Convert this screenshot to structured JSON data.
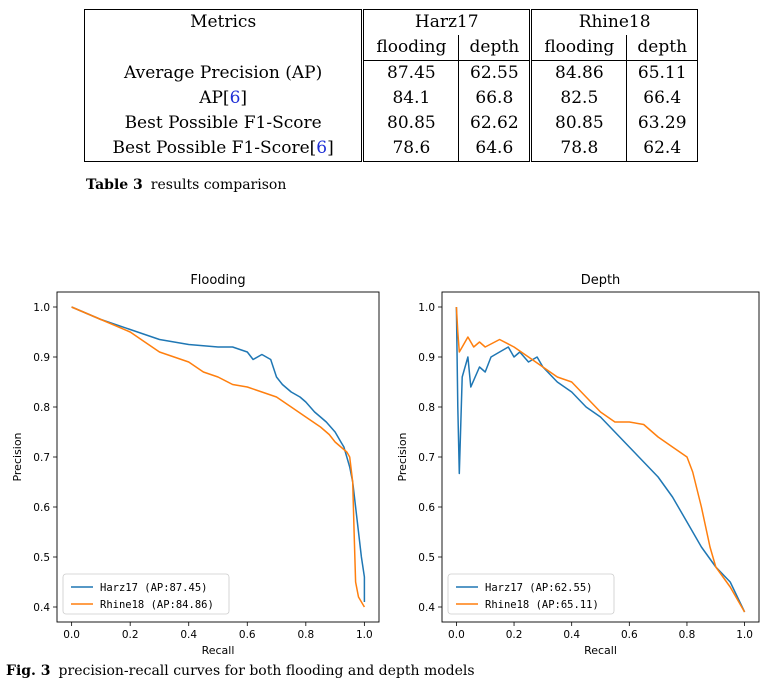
{
  "table": {
    "header": {
      "metrics": "Metrics",
      "group1": "Harz17",
      "group2": "Rhine18",
      "sub": [
        "flooding",
        "depth",
        "flooding",
        "depth"
      ]
    },
    "rows": [
      {
        "metric": "Average Precision (AP)",
        "cite": "",
        "values": [
          "87.45",
          "62.55",
          "84.86",
          "65.11"
        ],
        "bold": [
          true,
          false,
          true,
          false
        ]
      },
      {
        "metric": "AP[",
        "cite": "6",
        "values": [
          "84.1",
          "66.8",
          "82.5",
          "66.4"
        ],
        "bold": [
          false,
          true,
          false,
          true
        ]
      },
      {
        "metric": "Best Possible F1-Score",
        "cite": "",
        "values": [
          "80.85",
          "62.62",
          "80.85",
          "63.29"
        ],
        "bold": [
          true,
          false,
          true,
          true
        ]
      },
      {
        "metric": "Best Possible F1-Score[",
        "cite": "6",
        "values": [
          "78.6",
          "64.6",
          "78.8",
          "62.4"
        ],
        "bold": [
          false,
          true,
          false,
          false
        ]
      }
    ],
    "caption_label": "Table 3",
    "caption_text": "results comparison"
  },
  "figure": {
    "caption_label": "Fig. 3",
    "caption_text": "precision-recall curves for both flooding and depth models"
  },
  "colors": {
    "harz": "#1f77b4",
    "rhine": "#ff7f0e"
  },
  "chart_data": [
    {
      "type": "line",
      "title": "Flooding",
      "xlabel": "Recall",
      "ylabel": "Precision",
      "xlim": [
        -0.05,
        1.05
      ],
      "ylim": [
        0.37,
        1.03
      ],
      "xticks": [
        "0.0",
        "0.2",
        "0.4",
        "0.6",
        "0.8",
        "1.0"
      ],
      "yticks": [
        "0.4",
        "0.5",
        "0.6",
        "0.7",
        "0.8",
        "0.9",
        "1.0"
      ],
      "legend_position": "lower-left",
      "series": [
        {
          "name": "Harz17  (AP:87.45)",
          "color": "#1f77b4",
          "x": [
            0.0,
            0.1,
            0.2,
            0.3,
            0.4,
            0.5,
            0.55,
            0.6,
            0.62,
            0.65,
            0.68,
            0.7,
            0.72,
            0.75,
            0.78,
            0.8,
            0.83,
            0.85,
            0.87,
            0.9,
            0.92,
            0.93,
            0.94,
            0.95,
            0.96,
            0.97,
            0.98,
            0.99,
            1.0,
            1.0
          ],
          "y": [
            1.0,
            0.975,
            0.955,
            0.935,
            0.925,
            0.92,
            0.92,
            0.91,
            0.895,
            0.905,
            0.895,
            0.86,
            0.845,
            0.83,
            0.82,
            0.81,
            0.79,
            0.78,
            0.77,
            0.75,
            0.73,
            0.72,
            0.7,
            0.68,
            0.65,
            0.6,
            0.55,
            0.5,
            0.46,
            0.41
          ]
        },
        {
          "name": "Rhine18 (AP:84.86)",
          "color": "#ff7f0e",
          "x": [
            0.0,
            0.1,
            0.2,
            0.25,
            0.3,
            0.35,
            0.4,
            0.45,
            0.5,
            0.55,
            0.6,
            0.65,
            0.7,
            0.75,
            0.8,
            0.85,
            0.88,
            0.9,
            0.92,
            0.94,
            0.95,
            0.96,
            0.965,
            0.97,
            0.98,
            1.0
          ],
          "y": [
            1.0,
            0.975,
            0.95,
            0.93,
            0.91,
            0.9,
            0.89,
            0.87,
            0.86,
            0.845,
            0.84,
            0.83,
            0.82,
            0.8,
            0.78,
            0.76,
            0.745,
            0.73,
            0.72,
            0.71,
            0.7,
            0.65,
            0.55,
            0.45,
            0.42,
            0.4
          ]
        }
      ]
    },
    {
      "type": "line",
      "title": "Depth",
      "xlabel": "Recall",
      "ylabel": "Precision",
      "xlim": [
        -0.05,
        1.05
      ],
      "ylim": [
        0.37,
        1.03
      ],
      "xticks": [
        "0.0",
        "0.2",
        "0.4",
        "0.6",
        "0.8",
        "1.0"
      ],
      "yticks": [
        "0.4",
        "0.5",
        "0.6",
        "0.7",
        "0.8",
        "0.9",
        "1.0"
      ],
      "legend_position": "lower-left",
      "series": [
        {
          "name": "Harz17  (AP:62.55)",
          "color": "#1f77b4",
          "x": [
            0.0,
            0.005,
            0.01,
            0.02,
            0.04,
            0.05,
            0.08,
            0.1,
            0.12,
            0.15,
            0.18,
            0.2,
            0.22,
            0.25,
            0.28,
            0.3,
            0.35,
            0.4,
            0.45,
            0.5,
            0.55,
            0.6,
            0.65,
            0.7,
            0.75,
            0.8,
            0.85,
            0.9,
            0.95,
            1.0
          ],
          "y": [
            1.0,
            0.8,
            0.667,
            0.86,
            0.9,
            0.84,
            0.88,
            0.87,
            0.9,
            0.91,
            0.92,
            0.9,
            0.91,
            0.89,
            0.9,
            0.88,
            0.85,
            0.83,
            0.8,
            0.78,
            0.75,
            0.72,
            0.69,
            0.66,
            0.62,
            0.57,
            0.52,
            0.48,
            0.45,
            0.39
          ]
        },
        {
          "name": "Rhine18 (AP:65.11)",
          "color": "#ff7f0e",
          "x": [
            0.0,
            0.005,
            0.01,
            0.02,
            0.04,
            0.06,
            0.08,
            0.1,
            0.15,
            0.2,
            0.25,
            0.3,
            0.35,
            0.4,
            0.45,
            0.5,
            0.55,
            0.6,
            0.65,
            0.7,
            0.75,
            0.8,
            0.82,
            0.85,
            0.88,
            0.9,
            0.95,
            1.0
          ],
          "y": [
            1.0,
            0.95,
            0.91,
            0.92,
            0.94,
            0.92,
            0.93,
            0.92,
            0.935,
            0.92,
            0.9,
            0.88,
            0.86,
            0.85,
            0.82,
            0.79,
            0.77,
            0.77,
            0.765,
            0.74,
            0.72,
            0.7,
            0.67,
            0.6,
            0.52,
            0.48,
            0.44,
            0.39
          ]
        }
      ]
    }
  ]
}
